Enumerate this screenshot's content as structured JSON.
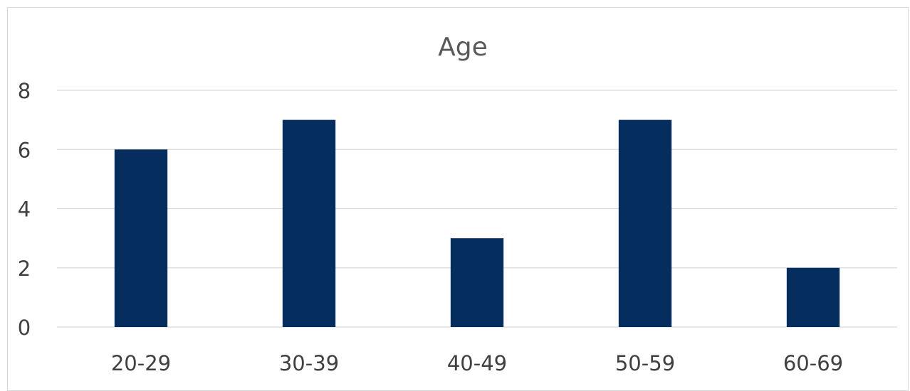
{
  "chart_data": {
    "type": "bar",
    "title": "Age",
    "categories": [
      "20-29",
      "30-39",
      "40-49",
      "50-59",
      "60-69"
    ],
    "values": [
      6,
      7,
      3,
      7,
      2
    ],
    "ylim": [
      0,
      8
    ],
    "yticks": [
      "0",
      "2",
      "4",
      "6",
      "8"
    ],
    "grid": true,
    "bar_color": "#052e5e",
    "xlabel": "",
    "ylabel": ""
  }
}
